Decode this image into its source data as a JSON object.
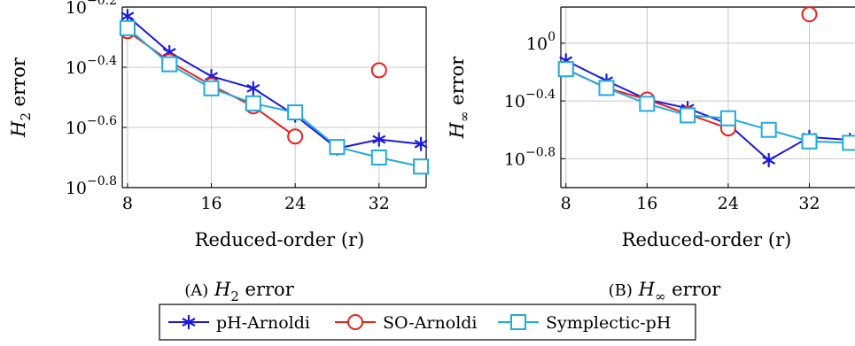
{
  "chart_data": [
    {
      "type": "line",
      "xlabel": "Reduced-order (r)",
      "ylabel": {
        "base": "H",
        "sub": "2",
        "rest": "error"
      },
      "caption": {
        "tag": "(A)",
        "var": "H",
        "sub": "2",
        "rest": "error"
      },
      "x_ticks": [
        8,
        16,
        24,
        32
      ],
      "y_tick_labels": [
        {
          "value": -0.2,
          "base": "10",
          "exp": "−0.2"
        },
        {
          "value": -0.4,
          "base": "10",
          "exp": "−0.4"
        },
        {
          "value": -0.6,
          "base": "10",
          "exp": "−0.6"
        },
        {
          "value": -0.8,
          "base": "10",
          "exp": "−0.8"
        }
      ],
      "yscale": "log",
      "ylim_log10": [
        -0.8,
        -0.2
      ],
      "xlim": [
        7.5,
        36.5
      ],
      "grid": true,
      "series": [
        {
          "name": "pH-Arnoldi",
          "color": "#1a1adf",
          "marker": "star",
          "x": [
            8,
            12,
            16,
            20,
            24,
            28,
            32,
            36
          ],
          "log10_y": [
            -0.23,
            -0.35,
            -0.43,
            -0.47,
            -0.56,
            -0.67,
            -0.64,
            -0.655
          ]
        },
        {
          "name": "SO-Arnoldi",
          "color": "#e8201c",
          "marker": "circle",
          "x": [
            8,
            12,
            16,
            20,
            24
          ],
          "log10_y": [
            -0.28,
            -0.38,
            -0.46,
            -0.53,
            -0.63
          ]
        },
        {
          "name": "SO-Arnoldi outlier",
          "color": "#e8201c",
          "marker": "circle",
          "x": [
            32
          ],
          "log10_y": [
            -0.41
          ]
        },
        {
          "name": "Symplectic-pH",
          "color": "#22aadd",
          "marker": "square",
          "x": [
            8,
            12,
            16,
            20,
            24,
            28,
            32,
            36
          ],
          "log10_y": [
            -0.27,
            -0.39,
            -0.47,
            -0.52,
            -0.55,
            -0.665,
            -0.7,
            -0.73
          ]
        }
      ]
    },
    {
      "type": "line",
      "xlabel": "Reduced-order (r)",
      "ylabel": {
        "base": "H",
        "sub": "∞",
        "rest": "error"
      },
      "caption": {
        "tag": "(B)",
        "var": "H",
        "sub": "∞",
        "rest": "error"
      },
      "x_ticks": [
        8,
        16,
        24,
        32
      ],
      "y_tick_labels": [
        {
          "value": 0,
          "base": "10",
          "exp": "0"
        },
        {
          "value": -0.4,
          "base": "10",
          "exp": "−0.4"
        },
        {
          "value": -0.8,
          "base": "10",
          "exp": "−0.8"
        }
      ],
      "yscale": "log",
      "ylim_log10": [
        -1.0,
        0.25
      ],
      "xlim": [
        7.5,
        36.5
      ],
      "grid": true,
      "series": [
        {
          "name": "pH-Arnoldi",
          "color": "#1a1adf",
          "marker": "star",
          "x": [
            8,
            12,
            16,
            20,
            24,
            28,
            32,
            36
          ],
          "log10_y": [
            -0.12,
            -0.26,
            -0.39,
            -0.45,
            -0.56,
            -0.81,
            -0.65,
            -0.67
          ]
        },
        {
          "name": "SO-Arnoldi",
          "color": "#e8201c",
          "marker": "circle",
          "x": [
            8,
            12,
            16,
            20,
            24
          ],
          "log10_y": [
            -0.18,
            -0.31,
            -0.39,
            -0.49,
            -0.59
          ]
        },
        {
          "name": "SO-Arnoldi outlier",
          "color": "#e8201c",
          "marker": "circle",
          "x": [
            32
          ],
          "log10_y": [
            0.2
          ]
        },
        {
          "name": "Symplectic-pH",
          "color": "#22aadd",
          "marker": "square",
          "x": [
            8,
            12,
            16,
            20,
            24,
            28,
            32,
            36
          ],
          "log10_y": [
            -0.18,
            -0.31,
            -0.42,
            -0.5,
            -0.52,
            -0.6,
            -0.68,
            -0.69
          ]
        }
      ]
    }
  ],
  "legend": [
    {
      "label": "pH-Arnoldi",
      "color": "#1a1adf",
      "marker": "star"
    },
    {
      "label": "SO-Arnoldi",
      "color": "#e8201c",
      "marker": "circle"
    },
    {
      "label": "Symplectic-pH",
      "color": "#22aadd",
      "marker": "square"
    }
  ]
}
